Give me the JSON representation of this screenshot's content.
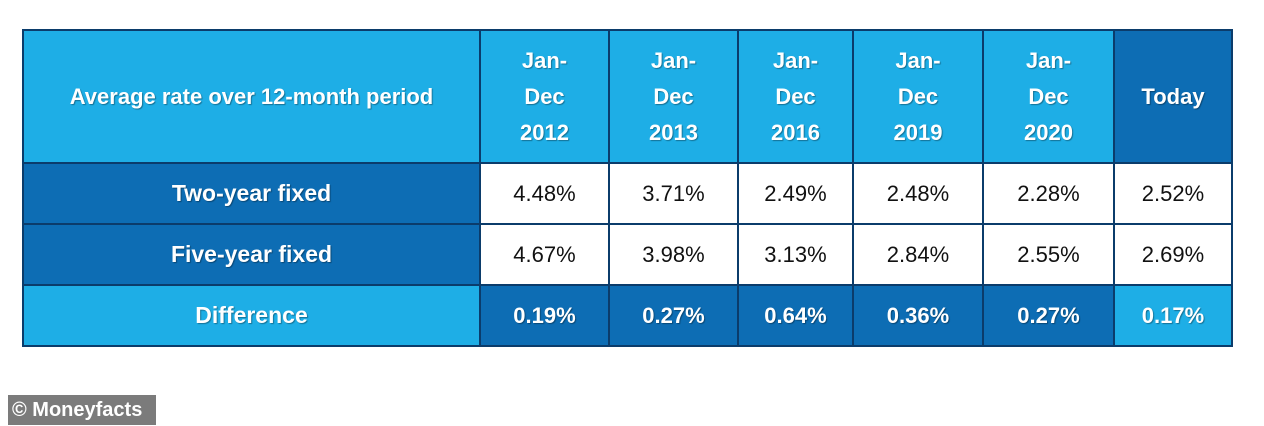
{
  "colors": {
    "light_blue": "#1eaee6",
    "dark_blue": "#0d6db4",
    "border": "#0b3c6b",
    "watermark_bg": "#7b7b7b"
  },
  "chart_data": {
    "type": "table",
    "header": {
      "label": "Average rate over 12-month period",
      "periods": [
        {
          "lines": [
            "Jan-",
            "Dec",
            "2012"
          ]
        },
        {
          "lines": [
            "Jan-",
            "Dec",
            "2013"
          ]
        },
        {
          "lines": [
            "Jan-",
            "Dec",
            "2016"
          ]
        },
        {
          "lines": [
            "Jan-",
            "Dec",
            "2019"
          ]
        },
        {
          "lines": [
            "Jan-",
            "Dec",
            "2020"
          ]
        },
        {
          "lines": [
            "Today"
          ]
        }
      ]
    },
    "rows": [
      {
        "label": "Two-year fixed",
        "values": [
          "4.48%",
          "3.71%",
          "2.49%",
          "2.48%",
          "2.28%",
          "2.52%"
        ]
      },
      {
        "label": "Five-year fixed",
        "values": [
          "4.67%",
          "3.98%",
          "3.13%",
          "2.84%",
          "2.55%",
          "2.69%"
        ]
      },
      {
        "label": "Difference",
        "values": [
          "0.19%",
          "0.27%",
          "0.64%",
          "0.36%",
          "0.27%",
          "0.17%"
        ]
      }
    ]
  },
  "watermark": {
    "text": "© Moneyfacts"
  }
}
